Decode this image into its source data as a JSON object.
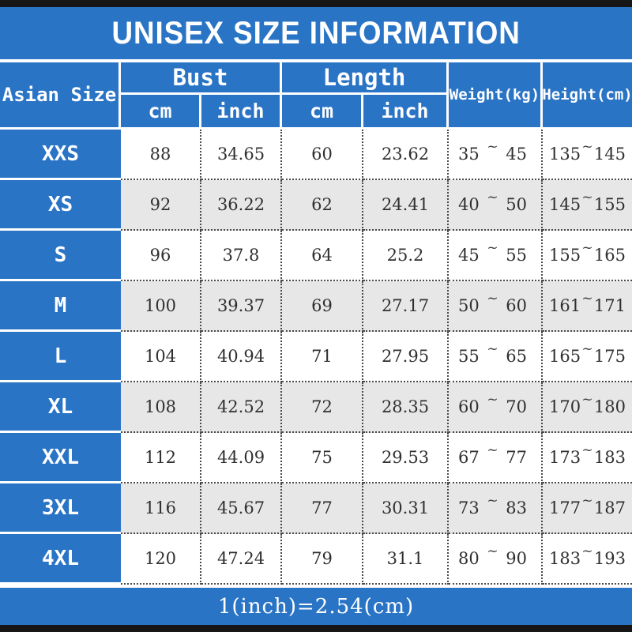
{
  "title": "UNISEX SIZE INFORMATION",
  "footer_note": "1(inch)=2.54(cm)",
  "tilde": "~",
  "colors": {
    "blue": "#2a74c6",
    "stripe_gray": "#e7e7e7",
    "bar_black": "#161616",
    "text_dark": "#303030",
    "white": "#ffffff"
  },
  "header": {
    "size_label": "Asian Size",
    "bust_label": "Bust",
    "length_label": "Length",
    "weight_label": "Weight(kg)",
    "height_label": "Height(cm)",
    "unit_cm": "cm",
    "unit_inch": "inch"
  },
  "rows": [
    {
      "size": "XXS",
      "bust_cm": "88",
      "bust_inch": "34.65",
      "length_cm": "60",
      "length_inch": "23.62",
      "weight_min": "35",
      "weight_max": "45",
      "height_min": "135",
      "height_max": "145"
    },
    {
      "size": "XS",
      "bust_cm": "92",
      "bust_inch": "36.22",
      "length_cm": "62",
      "length_inch": "24.41",
      "weight_min": "40",
      "weight_max": "50",
      "height_min": "145",
      "height_max": "155"
    },
    {
      "size": "S",
      "bust_cm": "96",
      "bust_inch": "37.8",
      "length_cm": "64",
      "length_inch": "25.2",
      "weight_min": "45",
      "weight_max": "55",
      "height_min": "155",
      "height_max": "165"
    },
    {
      "size": "M",
      "bust_cm": "100",
      "bust_inch": "39.37",
      "length_cm": "69",
      "length_inch": "27.17",
      "weight_min": "50",
      "weight_max": "60",
      "height_min": "161",
      "height_max": "171"
    },
    {
      "size": "L",
      "bust_cm": "104",
      "bust_inch": "40.94",
      "length_cm": "71",
      "length_inch": "27.95",
      "weight_min": "55",
      "weight_max": "65",
      "height_min": "165",
      "height_max": "175"
    },
    {
      "size": "XL",
      "bust_cm": "108",
      "bust_inch": "42.52",
      "length_cm": "72",
      "length_inch": "28.35",
      "weight_min": "60",
      "weight_max": "70",
      "height_min": "170",
      "height_max": "180"
    },
    {
      "size": "XXL",
      "bust_cm": "112",
      "bust_inch": "44.09",
      "length_cm": "75",
      "length_inch": "29.53",
      "weight_min": "67",
      "weight_max": "77",
      "height_min": "173",
      "height_max": "183"
    },
    {
      "size": "3XL",
      "bust_cm": "116",
      "bust_inch": "45.67",
      "length_cm": "77",
      "length_inch": "30.31",
      "weight_min": "73",
      "weight_max": "83",
      "height_min": "177",
      "height_max": "187"
    },
    {
      "size": "4XL",
      "bust_cm": "120",
      "bust_inch": "47.24",
      "length_cm": "79",
      "length_inch": "31.1",
      "weight_min": "80",
      "weight_max": "90",
      "height_min": "183",
      "height_max": "193"
    }
  ],
  "chart_data": {
    "type": "table",
    "title": "UNISEX SIZE INFORMATION",
    "note": "1(inch)=2.54(cm)",
    "columns": [
      "Asian Size",
      "Bust cm",
      "Bust inch",
      "Length cm",
      "Length inch",
      "Weight(kg)",
      "Height(cm)"
    ],
    "rows": [
      [
        "XXS",
        88,
        34.65,
        60,
        23.62,
        "35~45",
        "135~145"
      ],
      [
        "XS",
        92,
        36.22,
        62,
        24.41,
        "40~50",
        "145~155"
      ],
      [
        "S",
        96,
        37.8,
        64,
        25.2,
        "45~55",
        "155~165"
      ],
      [
        "M",
        100,
        39.37,
        69,
        27.17,
        "50~60",
        "161~171"
      ],
      [
        "L",
        104,
        40.94,
        71,
        27.95,
        "55~65",
        "165~175"
      ],
      [
        "XL",
        108,
        42.52,
        72,
        28.35,
        "60~70",
        "170~180"
      ],
      [
        "XXL",
        112,
        44.09,
        75,
        29.53,
        "67~77",
        "173~183"
      ],
      [
        "3XL",
        116,
        45.67,
        77,
        30.31,
        "73~83",
        "177~187"
      ],
      [
        "4XL",
        120,
        47.24,
        79,
        31.1,
        "80~90",
        "183~193"
      ]
    ],
    "layout": {
      "striped_rows": [
        "XS",
        "M",
        "XL",
        "3XL"
      ],
      "header_color": "#2a74c6",
      "stripe_color": "#e7e7e7"
    }
  }
}
